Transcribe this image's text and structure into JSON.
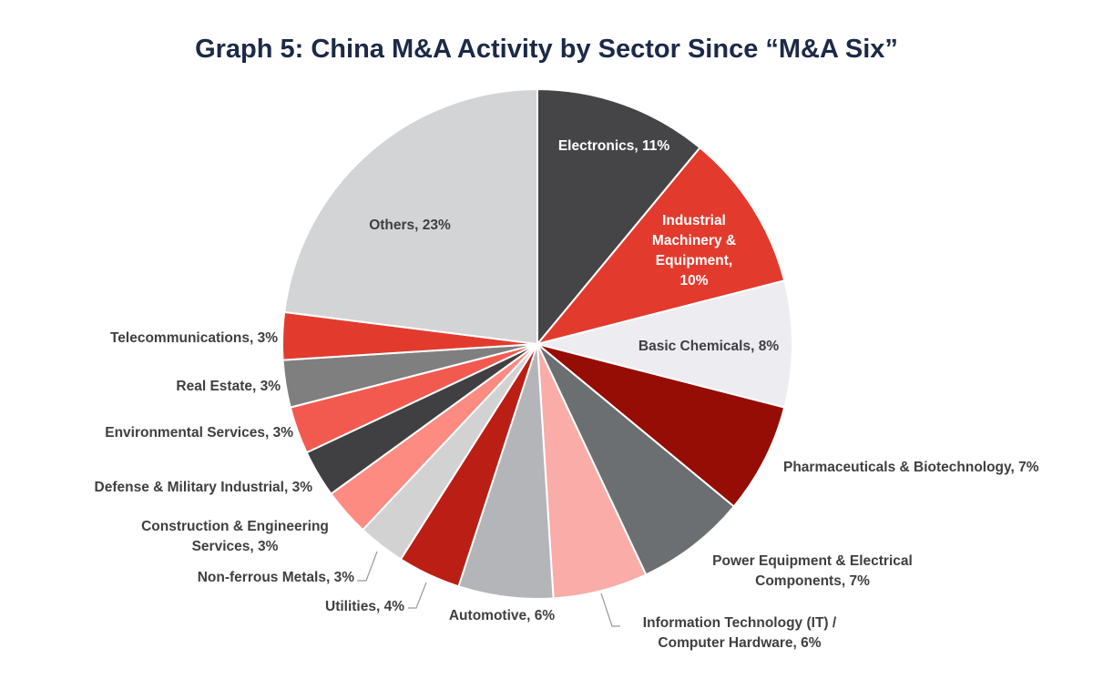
{
  "chart_data": {
    "type": "pie",
    "title": "Graph 5: China M&A Activity by Sector Since “M&A Six”",
    "legend": "none",
    "direction": "clockwise from top",
    "categories": [
      "Electronics",
      "Industrial Machinery & Equipment",
      "Basic Chemicals",
      "Pharmaceuticals & Biotechnology",
      "Power Equipment & Electrical Components",
      "Information Technology (IT) / Computer Hardware",
      "Automotive",
      "Utilities",
      "Non-ferrous Metals",
      "Construction & Engineering Services",
      "Defense & Military Industrial",
      "Environmental Services",
      "Real Estate",
      "Telecommunications",
      "Others"
    ],
    "values": [
      11,
      10,
      8,
      7,
      7,
      6,
      6,
      4,
      3,
      3,
      3,
      3,
      3,
      3,
      23
    ],
    "unit": "%",
    "colors": [
      "#454547",
      "#e23b2e",
      "#ededf1",
      "#950d04",
      "#6b6f71",
      "#f9aca8",
      "#b3b5b9",
      "#bb1e14",
      "#d2d2d3",
      "#fd8b82",
      "#404042",
      "#f25a50",
      "#7f7f80",
      "#e23b2e",
      "#d3d4d6"
    ],
    "labels": [
      "Electronics, 11%",
      "Industrial Machinery & Equipment, 10%",
      "Basic Chemicals, 8%",
      "Pharmaceuticals & Biotechnology, 7%",
      "Power Equipment & Electrical Components, 7%",
      "Information Technology (IT) / Computer Hardware, 6%",
      "Automotive, 6%",
      "Utilities, 4%",
      "Non-ferrous Metals, 3%",
      "Construction & Engineering Services, 3%",
      "Defense & Military Industrial, 3%",
      "Environmental Services, 3%",
      "Real Estate, 3%",
      "Telecommunications, 3%",
      "Others, 23%"
    ]
  }
}
